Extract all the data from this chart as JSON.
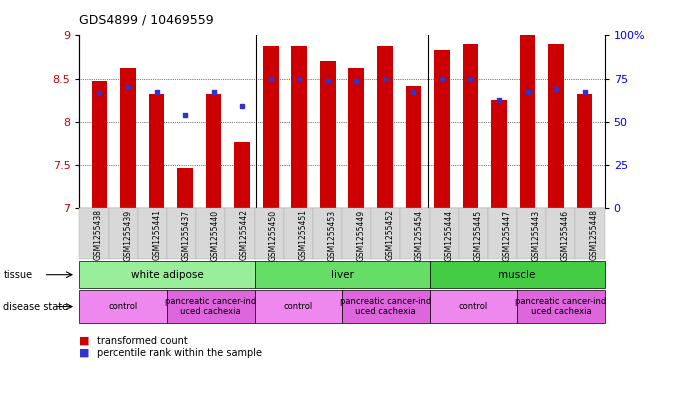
{
  "title": "GDS4899 / 10469559",
  "samples": [
    "GSM1255438",
    "GSM1255439",
    "GSM1255441",
    "GSM1255437",
    "GSM1255440",
    "GSM1255442",
    "GSM1255450",
    "GSM1255451",
    "GSM1255453",
    "GSM1255449",
    "GSM1255452",
    "GSM1255454",
    "GSM1255444",
    "GSM1255445",
    "GSM1255447",
    "GSM1255443",
    "GSM1255446",
    "GSM1255448"
  ],
  "red_values": [
    8.47,
    8.62,
    8.32,
    7.47,
    8.32,
    7.77,
    8.88,
    8.88,
    8.7,
    8.62,
    8.88,
    8.42,
    8.83,
    8.9,
    8.25,
    9.0,
    8.9,
    8.32
  ],
  "blue_values": [
    8.33,
    8.4,
    8.35,
    8.08,
    8.35,
    8.18,
    8.5,
    8.5,
    8.47,
    8.47,
    8.5,
    8.35,
    8.5,
    8.5,
    8.25,
    8.35,
    8.38,
    8.35
  ],
  "ylim_left": [
    7.0,
    9.0
  ],
  "ylim_right": [
    0,
    100
  ],
  "yticks_left": [
    7.0,
    7.5,
    8.0,
    8.5,
    9.0
  ],
  "ytick_labels_left": [
    "7",
    "7.5",
    "8",
    "8.5",
    "9"
  ],
  "yticks_right": [
    0,
    25,
    50,
    75,
    100
  ],
  "ytick_labels_right": [
    "0",
    "25",
    "50",
    "75",
    "100%"
  ],
  "bar_color": "#cc0000",
  "dot_color": "#3333cc",
  "tissue_groups": [
    {
      "label": "white adipose",
      "start": 0,
      "end": 6,
      "color": "#99ee99"
    },
    {
      "label": "liver",
      "start": 6,
      "end": 12,
      "color": "#66dd66"
    },
    {
      "label": "muscle",
      "start": 12,
      "end": 18,
      "color": "#44cc44"
    }
  ],
  "disease_groups": [
    {
      "label": "control",
      "start": 0,
      "end": 3,
      "color": "#ee88ee"
    },
    {
      "label": "pancreatic cancer-ind\nuced cachexia",
      "start": 3,
      "end": 6,
      "color": "#dd66dd"
    },
    {
      "label": "control",
      "start": 6,
      "end": 9,
      "color": "#ee88ee"
    },
    {
      "label": "pancreatic cancer-ind\nuced cachexia",
      "start": 9,
      "end": 12,
      "color": "#dd66dd"
    },
    {
      "label": "control",
      "start": 12,
      "end": 15,
      "color": "#ee88ee"
    },
    {
      "label": "pancreatic cancer-ind\nuced cachexia",
      "start": 15,
      "end": 18,
      "color": "#dd66dd"
    }
  ]
}
